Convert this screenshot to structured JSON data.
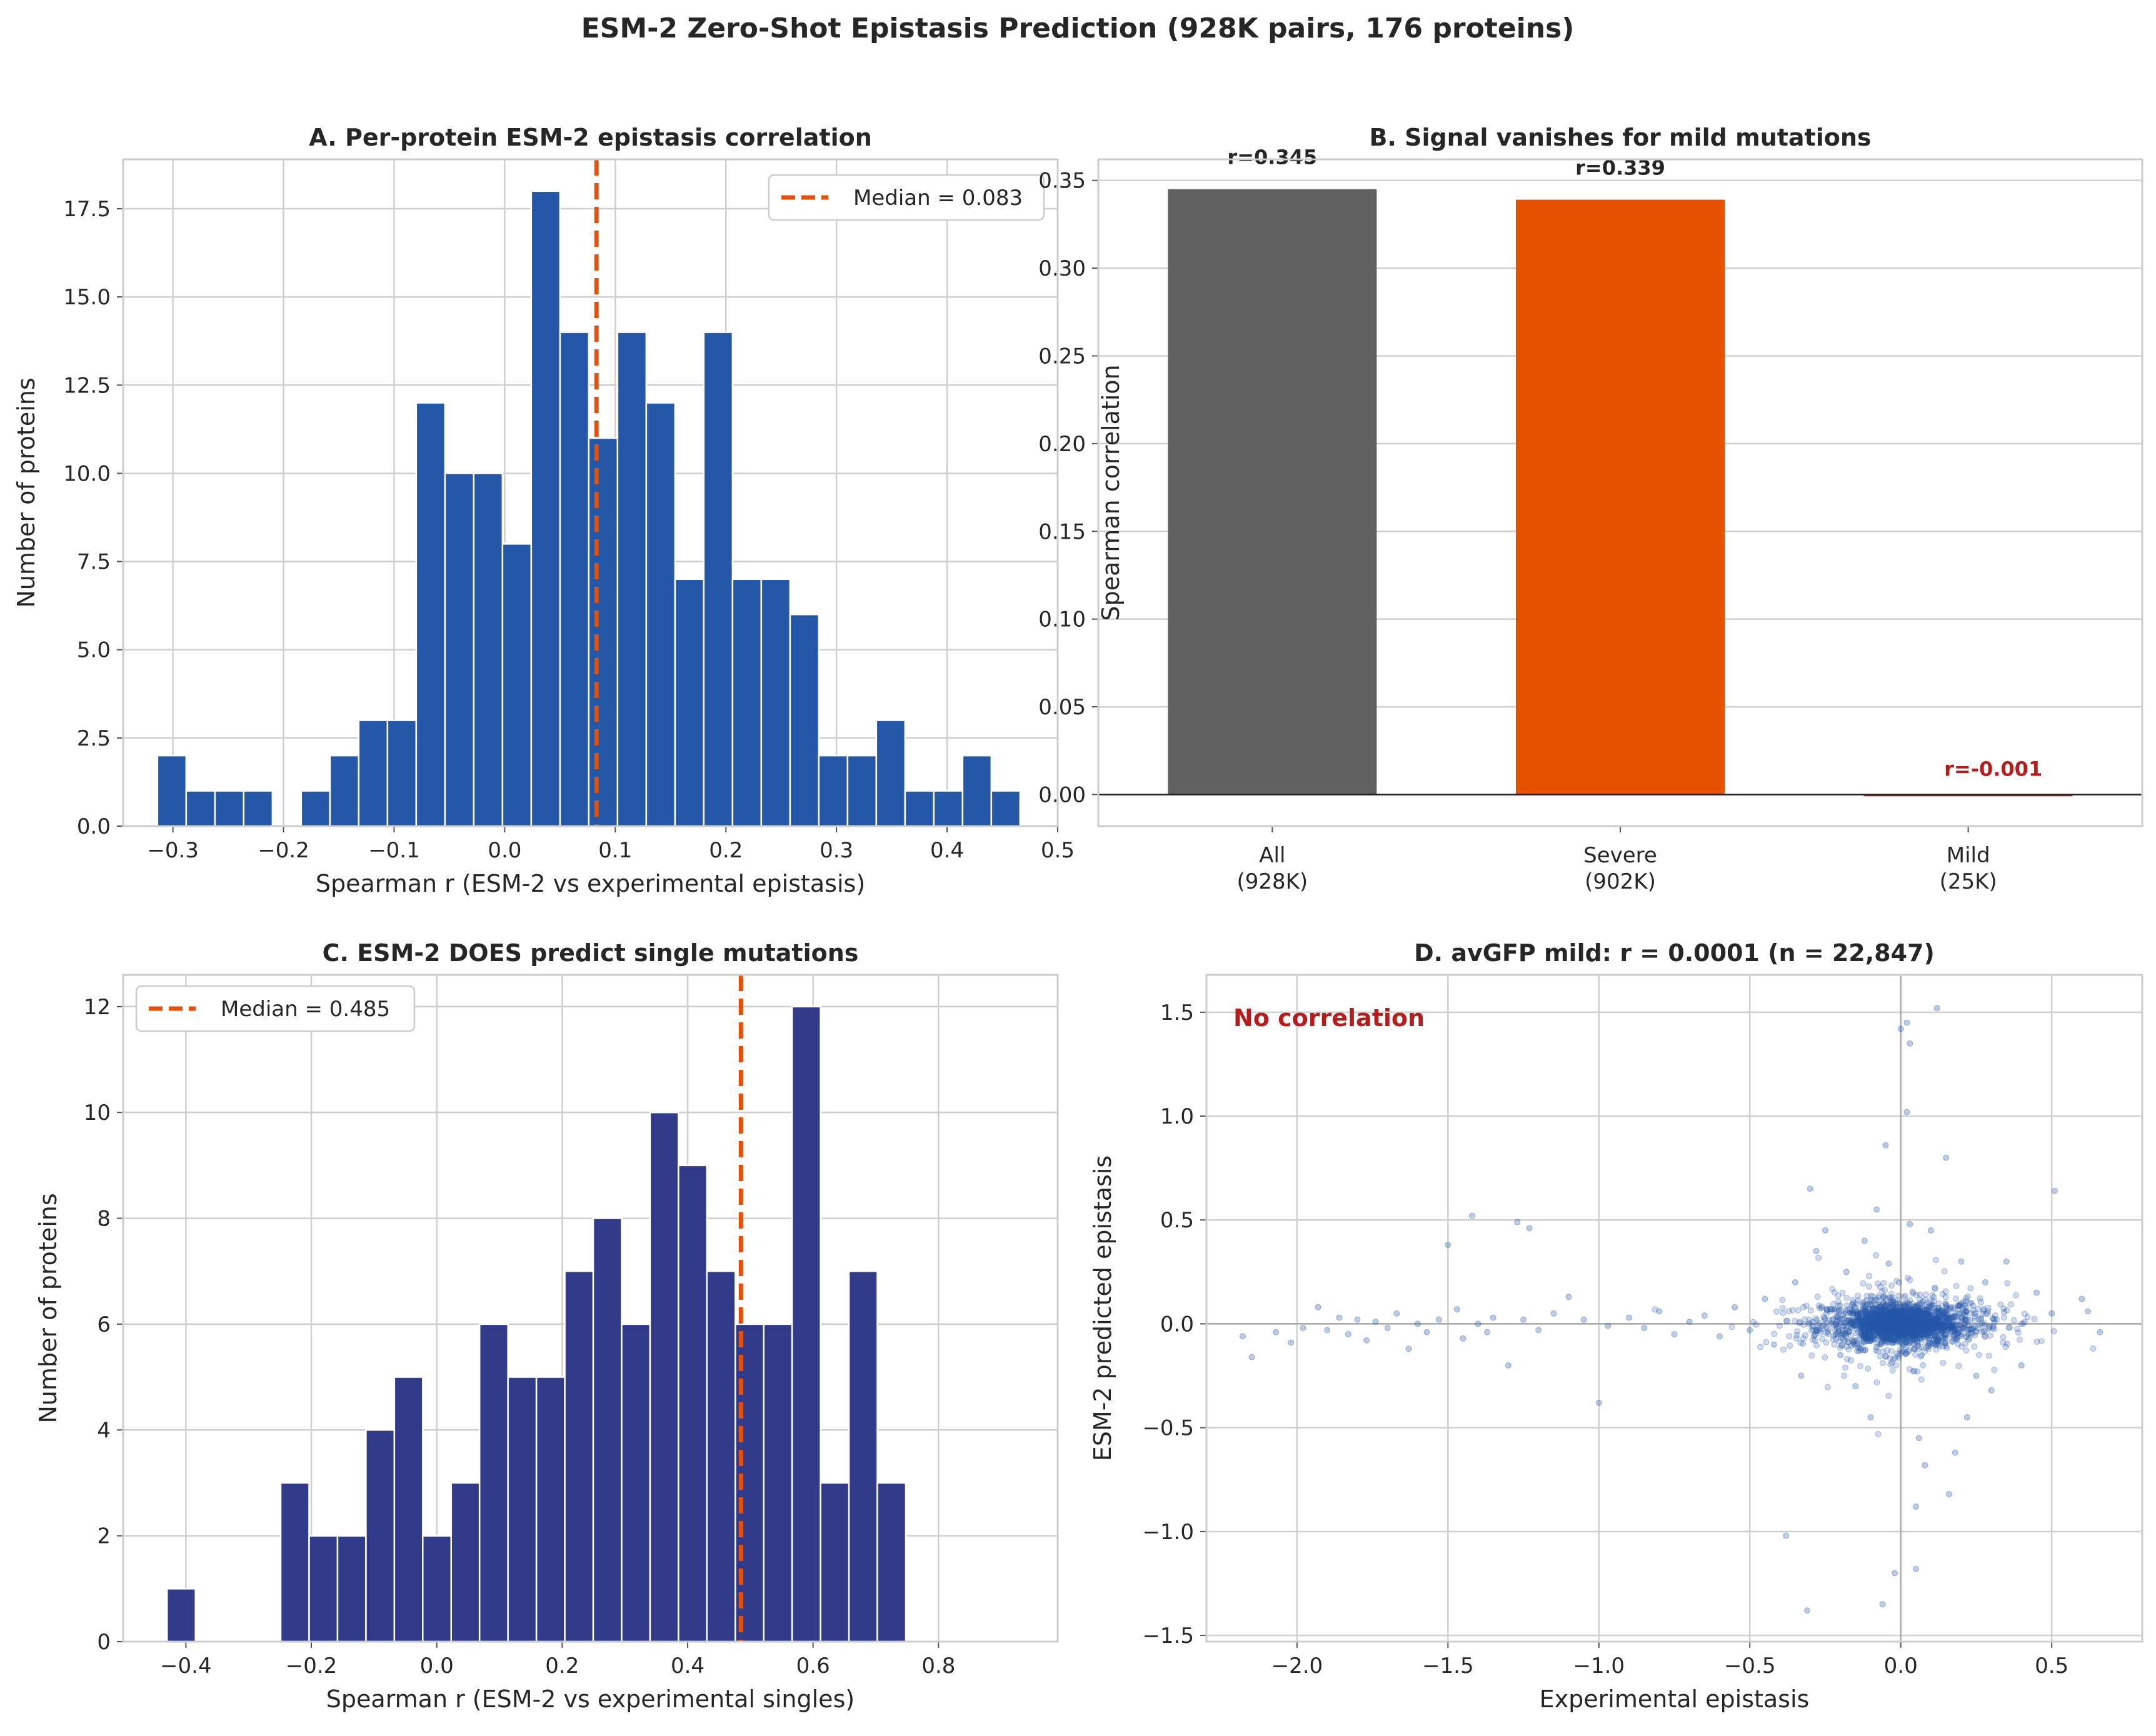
{
  "figure": {
    "title": "ESM-2 Zero-Shot Epistasis Prediction (928K pairs, 176 proteins)"
  },
  "colors": {
    "hist_a": "#2457a8",
    "hist_c": "#323a8a",
    "median_line": "#e6510a",
    "bar_all": "#616161",
    "bar_severe": "#e65100",
    "bar_mild": "#b71c1c",
    "label_red": "#b71c1c",
    "scatter": "#2457a8",
    "grid": "#cfcfcf"
  },
  "chart_data": [
    {
      "id": "A",
      "type": "bar",
      "title": "A. Per-protein ESM-2 epistasis correlation",
      "xlabel": "Spearman r (ESM-2 vs experimental epistasis)",
      "ylabel": "Number of proteins",
      "xlim": [
        -0.345,
        0.5
      ],
      "ylim": [
        0,
        18.9
      ],
      "xticks": [
        -0.3,
        -0.2,
        -0.1,
        0.0,
        0.1,
        0.2,
        0.3,
        0.4,
        0.5
      ],
      "xtick_labels": [
        "−0.3",
        "−0.2",
        "−0.1",
        "0.0",
        "0.1",
        "0.2",
        "0.3",
        "0.4",
        "0.5"
      ],
      "yticks": [
        0,
        2.5,
        5,
        7.5,
        10,
        12.5,
        15,
        17.5
      ],
      "ytick_labels": [
        "0.0",
        "2.5",
        "5.0",
        "7.5",
        "10.0",
        "12.5",
        "15.0",
        "17.5"
      ],
      "bin_start": -0.314,
      "bin_width": 0.026,
      "counts": [
        2,
        1,
        1,
        1,
        0,
        1,
        2,
        3,
        3,
        12,
        10,
        10,
        8,
        18,
        14,
        11,
        14,
        12,
        7,
        14,
        7,
        7,
        6,
        2,
        2,
        3,
        1,
        1,
        2,
        1
      ],
      "median": 0.083,
      "legend": "Median = 0.083",
      "legend_position": "upper right",
      "grid": true
    },
    {
      "id": "B",
      "type": "bar",
      "title": "B. Signal vanishes for mild mutations",
      "xlabel": "",
      "ylabel": "Spearman correlation",
      "ylim": [
        -0.018,
        0.362
      ],
      "yticks": [
        0,
        0.05,
        0.1,
        0.15,
        0.2,
        0.25,
        0.3,
        0.35
      ],
      "ytick_labels": [
        "0.00",
        "0.05",
        "0.10",
        "0.15",
        "0.20",
        "0.25",
        "0.30",
        "0.35"
      ],
      "categories": [
        {
          "line1": "All",
          "line2": "(928K)"
        },
        {
          "line1": "Severe",
          "line2": "(902K)"
        },
        {
          "line1": "Mild",
          "line2": "(25K)"
        }
      ],
      "values": [
        0.345,
        0.339,
        -0.001
      ],
      "value_labels": [
        "r=0.345",
        "r=0.339",
        "r=-0.001"
      ],
      "grid": true
    },
    {
      "id": "C",
      "type": "bar",
      "title": "C. ESM-2 DOES predict single mutations",
      "xlabel": "Spearman r (ESM-2 vs experimental singles)",
      "ylabel": "Number of proteins",
      "xlim": [
        -0.5,
        0.99
      ],
      "ylim": [
        0,
        12.6
      ],
      "xticks": [
        -0.4,
        -0.2,
        0.0,
        0.2,
        0.4,
        0.6,
        0.8
      ],
      "xtick_labels": [
        "−0.4",
        "−0.2",
        "0.0",
        "0.2",
        "0.4",
        "0.6",
        "0.8"
      ],
      "yticks": [
        0,
        2,
        4,
        6,
        8,
        10,
        12
      ],
      "ytick_labels": [
        "0",
        "2",
        "4",
        "6",
        "8",
        "10",
        "12"
      ],
      "bin_start": -0.43,
      "bin_width": 0.0453,
      "counts": [
        1,
        0,
        0,
        0,
        3,
        2,
        2,
        4,
        5,
        2,
        3,
        6,
        5,
        5,
        7,
        8,
        6,
        10,
        9,
        7,
        6,
        6,
        12,
        3,
        7,
        3
      ],
      "median": 0.485,
      "legend": "Median = 0.485",
      "legend_position": "upper left",
      "grid": true
    },
    {
      "id": "D",
      "type": "scatter",
      "title": "D. avGFP mild: r = 0.0001 (n = 22,847)",
      "xlabel": "Experimental epistasis",
      "ylabel": "ESM-2 predicted epistasis",
      "xlim": [
        -2.3,
        0.8
      ],
      "ylim": [
        -1.53,
        1.68
      ],
      "xticks": [
        -2.0,
        -1.5,
        -1.0,
        -0.5,
        0.0,
        0.5
      ],
      "xtick_labels": [
        "−2.0",
        "−1.5",
        "−1.0",
        "−0.5",
        "0.0",
        "0.5"
      ],
      "yticks": [
        -1.5,
        -1.0,
        -0.5,
        0.0,
        0.5,
        1.0,
        1.5
      ],
      "ytick_labels": [
        "−1.5",
        "−1.0",
        "−0.5",
        "0.0",
        "0.5",
        "1.0",
        "1.5"
      ],
      "annotation": "No correlation",
      "n_points": 22847,
      "r": 0.0001,
      "points": [
        [
          -2.18,
          -0.06
        ],
        [
          -2.15,
          -0.16
        ],
        [
          -2.07,
          -0.04
        ],
        [
          -2.02,
          -0.09
        ],
        [
          -1.98,
          -0.02
        ],
        [
          -1.93,
          0.08
        ],
        [
          -1.9,
          -0.03
        ],
        [
          -1.86,
          0.03
        ],
        [
          -1.83,
          -0.05
        ],
        [
          -1.8,
          0.02
        ],
        [
          -1.77,
          -0.08
        ],
        [
          -1.74,
          0.01
        ],
        [
          -1.7,
          -0.02
        ],
        [
          -1.67,
          0.05
        ],
        [
          -1.63,
          -0.12
        ],
        [
          -1.6,
          0.0
        ],
        [
          -1.57,
          -0.04
        ],
        [
          -1.53,
          0.02
        ],
        [
          -1.5,
          0.38
        ],
        [
          -1.47,
          0.07
        ],
        [
          -1.45,
          -0.07
        ],
        [
          -1.42,
          0.52
        ],
        [
          -1.4,
          0.0
        ],
        [
          -1.37,
          -0.04
        ],
        [
          -1.35,
          0.03
        ],
        [
          -1.3,
          -0.2
        ],
        [
          -1.27,
          0.49
        ],
        [
          -1.25,
          0.02
        ],
        [
          -1.23,
          0.46
        ],
        [
          -1.2,
          -0.03
        ],
        [
          -1.15,
          0.05
        ],
        [
          -1.1,
          0.13
        ],
        [
          -1.05,
          0.02
        ],
        [
          -1.0,
          -0.38
        ],
        [
          -0.97,
          -0.01
        ],
        [
          -0.9,
          0.03
        ],
        [
          -0.85,
          -0.02
        ],
        [
          -0.8,
          0.06
        ],
        [
          -0.75,
          -0.05
        ],
        [
          -0.7,
          0.01
        ],
        [
          -0.65,
          0.04
        ],
        [
          -0.6,
          -0.06
        ],
        [
          -0.55,
          0.08
        ],
        [
          -0.5,
          -0.03
        ],
        [
          -0.45,
          0.12
        ],
        [
          -0.42,
          -0.1
        ],
        [
          -0.38,
          -1.02
        ],
        [
          -0.35,
          0.2
        ],
        [
          -0.33,
          -0.25
        ],
        [
          -0.31,
          -1.38
        ],
        [
          -0.3,
          0.65
        ],
        [
          -0.28,
          0.35
        ],
        [
          -0.25,
          0.45
        ],
        [
          -0.05,
          0.86
        ],
        [
          -0.04,
          0.29
        ],
        [
          0.02,
          1.45
        ],
        [
          0.02,
          1.02
        ],
        [
          0.03,
          1.35
        ],
        [
          0.03,
          0.48
        ],
        [
          0.05,
          -0.88
        ],
        [
          0.05,
          -1.18
        ],
        [
          0.08,
          -0.68
        ],
        [
          0.12,
          1.52
        ],
        [
          0.15,
          0.8
        ],
        [
          0.16,
          -0.82
        ],
        [
          -0.06,
          -1.35
        ],
        [
          -0.02,
          -1.2
        ],
        [
          0.0,
          1.42
        ],
        [
          0.18,
          -0.62
        ],
        [
          0.22,
          -0.45
        ],
        [
          0.3,
          -0.32
        ],
        [
          0.35,
          0.3
        ],
        [
          0.4,
          -0.2
        ],
        [
          0.45,
          0.15
        ],
        [
          0.5,
          0.05
        ],
        [
          0.51,
          0.64
        ],
        [
          0.6,
          0.12
        ],
        [
          0.62,
          0.06
        ],
        [
          0.66,
          -0.04
        ],
        [
          -0.15,
          -0.3
        ],
        [
          -0.18,
          0.25
        ],
        [
          -0.2,
          -0.15
        ],
        [
          -0.12,
          0.4
        ],
        [
          -0.1,
          -0.45
        ],
        [
          0.1,
          0.45
        ],
        [
          0.2,
          0.3
        ],
        [
          0.25,
          -0.25
        ],
        [
          0.28,
          0.2
        ],
        [
          -0.08,
          0.55
        ],
        [
          0.06,
          -0.55
        ]
      ],
      "cloud": {
        "center": [
          0.0,
          0.0
        ],
        "sd_x": 0.13,
        "sd_y": 0.06,
        "count": 1500,
        "core_count": 600
      },
      "grid": true
    }
  ]
}
